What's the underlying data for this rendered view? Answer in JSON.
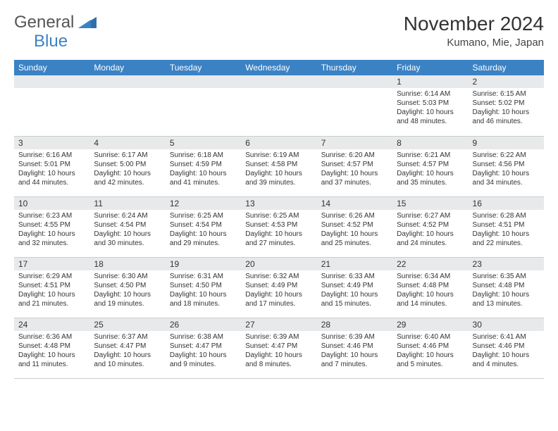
{
  "logo": {
    "part1": "General",
    "part2": "Blue"
  },
  "title": "November 2024",
  "location": "Kumano, Mie, Japan",
  "colors": {
    "header_bg": "#3b82c4",
    "header_fg": "#ffffff",
    "daynum_bg": "#e8e9ea",
    "text": "#333333",
    "logo_gray": "#555555",
    "logo_blue": "#3b82c4"
  },
  "weekdays": [
    "Sunday",
    "Monday",
    "Tuesday",
    "Wednesday",
    "Thursday",
    "Friday",
    "Saturday"
  ],
  "weeks": [
    [
      {
        "blank": true
      },
      {
        "blank": true
      },
      {
        "blank": true
      },
      {
        "blank": true
      },
      {
        "blank": true
      },
      {
        "n": "1",
        "sr": "Sunrise: 6:14 AM",
        "ss": "Sunset: 5:03 PM",
        "dl1": "Daylight: 10 hours",
        "dl2": "and 48 minutes."
      },
      {
        "n": "2",
        "sr": "Sunrise: 6:15 AM",
        "ss": "Sunset: 5:02 PM",
        "dl1": "Daylight: 10 hours",
        "dl2": "and 46 minutes."
      }
    ],
    [
      {
        "n": "3",
        "sr": "Sunrise: 6:16 AM",
        "ss": "Sunset: 5:01 PM",
        "dl1": "Daylight: 10 hours",
        "dl2": "and 44 minutes."
      },
      {
        "n": "4",
        "sr": "Sunrise: 6:17 AM",
        "ss": "Sunset: 5:00 PM",
        "dl1": "Daylight: 10 hours",
        "dl2": "and 42 minutes."
      },
      {
        "n": "5",
        "sr": "Sunrise: 6:18 AM",
        "ss": "Sunset: 4:59 PM",
        "dl1": "Daylight: 10 hours",
        "dl2": "and 41 minutes."
      },
      {
        "n": "6",
        "sr": "Sunrise: 6:19 AM",
        "ss": "Sunset: 4:58 PM",
        "dl1": "Daylight: 10 hours",
        "dl2": "and 39 minutes."
      },
      {
        "n": "7",
        "sr": "Sunrise: 6:20 AM",
        "ss": "Sunset: 4:57 PM",
        "dl1": "Daylight: 10 hours",
        "dl2": "and 37 minutes."
      },
      {
        "n": "8",
        "sr": "Sunrise: 6:21 AM",
        "ss": "Sunset: 4:57 PM",
        "dl1": "Daylight: 10 hours",
        "dl2": "and 35 minutes."
      },
      {
        "n": "9",
        "sr": "Sunrise: 6:22 AM",
        "ss": "Sunset: 4:56 PM",
        "dl1": "Daylight: 10 hours",
        "dl2": "and 34 minutes."
      }
    ],
    [
      {
        "n": "10",
        "sr": "Sunrise: 6:23 AM",
        "ss": "Sunset: 4:55 PM",
        "dl1": "Daylight: 10 hours",
        "dl2": "and 32 minutes."
      },
      {
        "n": "11",
        "sr": "Sunrise: 6:24 AM",
        "ss": "Sunset: 4:54 PM",
        "dl1": "Daylight: 10 hours",
        "dl2": "and 30 minutes."
      },
      {
        "n": "12",
        "sr": "Sunrise: 6:25 AM",
        "ss": "Sunset: 4:54 PM",
        "dl1": "Daylight: 10 hours",
        "dl2": "and 29 minutes."
      },
      {
        "n": "13",
        "sr": "Sunrise: 6:25 AM",
        "ss": "Sunset: 4:53 PM",
        "dl1": "Daylight: 10 hours",
        "dl2": "and 27 minutes."
      },
      {
        "n": "14",
        "sr": "Sunrise: 6:26 AM",
        "ss": "Sunset: 4:52 PM",
        "dl1": "Daylight: 10 hours",
        "dl2": "and 25 minutes."
      },
      {
        "n": "15",
        "sr": "Sunrise: 6:27 AM",
        "ss": "Sunset: 4:52 PM",
        "dl1": "Daylight: 10 hours",
        "dl2": "and 24 minutes."
      },
      {
        "n": "16",
        "sr": "Sunrise: 6:28 AM",
        "ss": "Sunset: 4:51 PM",
        "dl1": "Daylight: 10 hours",
        "dl2": "and 22 minutes."
      }
    ],
    [
      {
        "n": "17",
        "sr": "Sunrise: 6:29 AM",
        "ss": "Sunset: 4:51 PM",
        "dl1": "Daylight: 10 hours",
        "dl2": "and 21 minutes."
      },
      {
        "n": "18",
        "sr": "Sunrise: 6:30 AM",
        "ss": "Sunset: 4:50 PM",
        "dl1": "Daylight: 10 hours",
        "dl2": "and 19 minutes."
      },
      {
        "n": "19",
        "sr": "Sunrise: 6:31 AM",
        "ss": "Sunset: 4:50 PM",
        "dl1": "Daylight: 10 hours",
        "dl2": "and 18 minutes."
      },
      {
        "n": "20",
        "sr": "Sunrise: 6:32 AM",
        "ss": "Sunset: 4:49 PM",
        "dl1": "Daylight: 10 hours",
        "dl2": "and 17 minutes."
      },
      {
        "n": "21",
        "sr": "Sunrise: 6:33 AM",
        "ss": "Sunset: 4:49 PM",
        "dl1": "Daylight: 10 hours",
        "dl2": "and 15 minutes."
      },
      {
        "n": "22",
        "sr": "Sunrise: 6:34 AM",
        "ss": "Sunset: 4:48 PM",
        "dl1": "Daylight: 10 hours",
        "dl2": "and 14 minutes."
      },
      {
        "n": "23",
        "sr": "Sunrise: 6:35 AM",
        "ss": "Sunset: 4:48 PM",
        "dl1": "Daylight: 10 hours",
        "dl2": "and 13 minutes."
      }
    ],
    [
      {
        "n": "24",
        "sr": "Sunrise: 6:36 AM",
        "ss": "Sunset: 4:48 PM",
        "dl1": "Daylight: 10 hours",
        "dl2": "and 11 minutes."
      },
      {
        "n": "25",
        "sr": "Sunrise: 6:37 AM",
        "ss": "Sunset: 4:47 PM",
        "dl1": "Daylight: 10 hours",
        "dl2": "and 10 minutes."
      },
      {
        "n": "26",
        "sr": "Sunrise: 6:38 AM",
        "ss": "Sunset: 4:47 PM",
        "dl1": "Daylight: 10 hours",
        "dl2": "and 9 minutes."
      },
      {
        "n": "27",
        "sr": "Sunrise: 6:39 AM",
        "ss": "Sunset: 4:47 PM",
        "dl1": "Daylight: 10 hours",
        "dl2": "and 8 minutes."
      },
      {
        "n": "28",
        "sr": "Sunrise: 6:39 AM",
        "ss": "Sunset: 4:46 PM",
        "dl1": "Daylight: 10 hours",
        "dl2": "and 7 minutes."
      },
      {
        "n": "29",
        "sr": "Sunrise: 6:40 AM",
        "ss": "Sunset: 4:46 PM",
        "dl1": "Daylight: 10 hours",
        "dl2": "and 5 minutes."
      },
      {
        "n": "30",
        "sr": "Sunrise: 6:41 AM",
        "ss": "Sunset: 4:46 PM",
        "dl1": "Daylight: 10 hours",
        "dl2": "and 4 minutes."
      }
    ]
  ]
}
